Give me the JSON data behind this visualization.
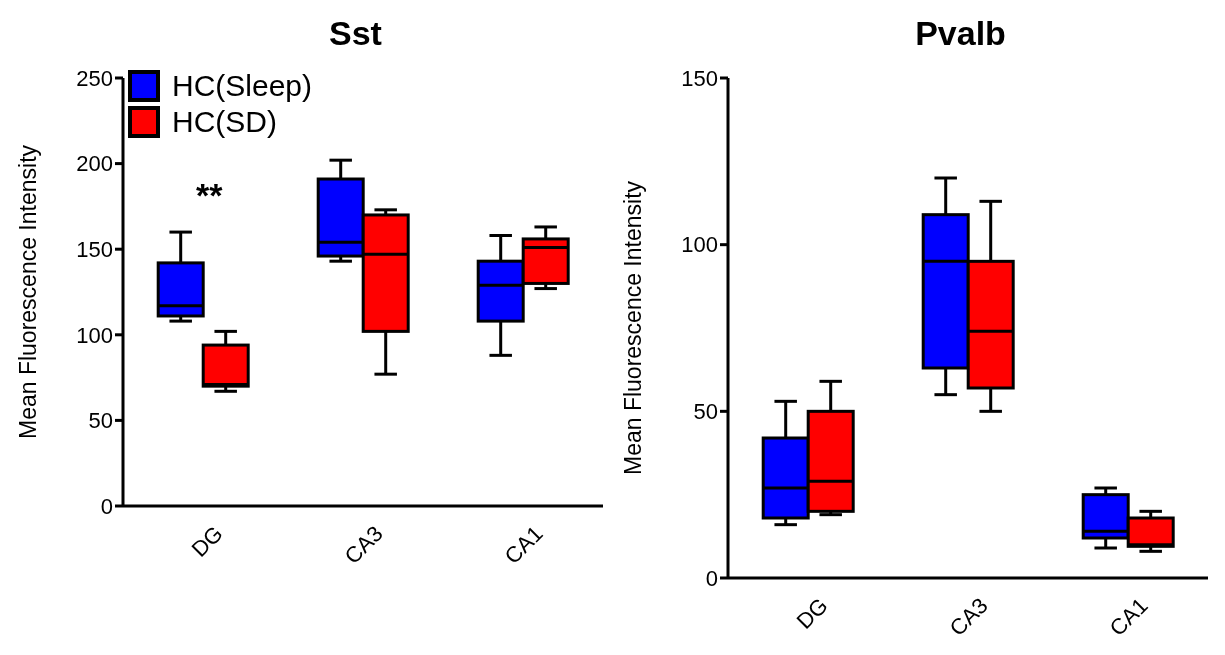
{
  "chart_data": [
    {
      "type": "box",
      "title": "Sst",
      "ylabel": "Mean Fluorescence Intensity",
      "categories": [
        "DG",
        "CA3",
        "CA1"
      ],
      "ylim": [
        0,
        250
      ],
      "yticks": [
        0,
        50,
        100,
        150,
        200,
        250
      ],
      "legend": "top left",
      "annotations": [
        "**"
      ],
      "series": [
        {
          "name": "HC(Sleep)",
          "color": "#0000ff",
          "boxes": [
            {
              "low": 108,
              "q1": 111,
              "median": 117,
              "q3": 142,
              "high": 160
            },
            {
              "low": 143,
              "q1": 146,
              "median": 154,
              "q3": 191,
              "high": 202
            },
            {
              "low": 88,
              "q1": 108,
              "median": 129,
              "q3": 143,
              "high": 158
            }
          ]
        },
        {
          "name": "HC(SD)",
          "color": "#ff0000",
          "boxes": [
            {
              "low": 67,
              "q1": 70,
              "median": 71,
              "q3": 94,
              "high": 102
            },
            {
              "low": 77,
              "q1": 102,
              "median": 147,
              "q3": 170,
              "high": 173
            },
            {
              "low": 127,
              "q1": 130,
              "median": 151,
              "q3": 156,
              "high": 163
            }
          ]
        }
      ]
    },
    {
      "type": "box",
      "title": "Pvalb",
      "ylabel": "Mean Fluorescence Intensity",
      "categories": [
        "DG",
        "CA3",
        "CA1"
      ],
      "ylim": [
        0,
        150
      ],
      "yticks": [
        0,
        50,
        100,
        150
      ],
      "series": [
        {
          "color": "#0000ff",
          "boxes": [
            {
              "low": 16,
              "q1": 18,
              "median": 27,
              "q3": 42,
              "high": 53
            },
            {
              "low": 55,
              "q1": 63,
              "median": 95,
              "q3": 109,
              "high": 120
            },
            {
              "low": 9,
              "q1": 12,
              "median": 14,
              "q3": 25,
              "high": 27
            }
          ]
        },
        {
          "color": "#ff0000",
          "boxes": [
            {
              "low": 19,
              "q1": 20,
              "median": 29,
              "q3": 50,
              "high": 59
            },
            {
              "low": 50,
              "q1": 57,
              "median": 74,
              "q3": 95,
              "high": 113
            },
            {
              "low": 8,
              "q1": 9.5,
              "median": 10,
              "q3": 18,
              "high": 20
            }
          ]
        }
      ]
    }
  ]
}
